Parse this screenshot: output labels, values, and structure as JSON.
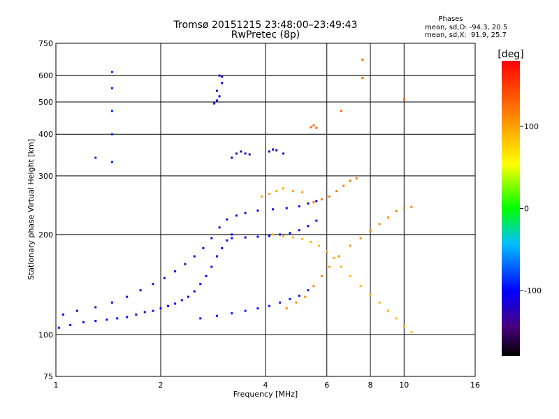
{
  "chart_data": {
    "type": "scatter",
    "title": "Tromsø 20151215 23:48:00–23:49:43",
    "subtitle": "RwPretec (8p)",
    "xlabel": "Frequency [MHz]",
    "ylabel": "Stationary phase Virtual Height [km]",
    "xscale": "log",
    "yscale": "log",
    "xlim": [
      1,
      16
    ],
    "ylim": [
      75,
      750
    ],
    "x_ticks": [
      1,
      2,
      4,
      6,
      8,
      10,
      16
    ],
    "y_ticks": [
      75,
      100,
      200,
      300,
      400,
      500,
      600,
      750
    ],
    "grid": true,
    "stats": {
      "heading": "Phases",
      "line_o": "mean, sd,O: -94.3, 20.5",
      "line_x": "mean, sd,X:  91.9, 25.7"
    },
    "colorbar": {
      "label": "[deg]",
      "min": -180,
      "max": 180,
      "ticks": [
        100,
        0,
        -100
      ]
    },
    "traces": [
      {
        "phase": -100,
        "points": [
          [
            1.02,
            105
          ],
          [
            1.1,
            107
          ],
          [
            1.2,
            109
          ],
          [
            1.3,
            110
          ],
          [
            1.4,
            111
          ],
          [
            1.5,
            112
          ],
          [
            1.6,
            113
          ],
          [
            1.7,
            115
          ],
          [
            1.8,
            117
          ],
          [
            1.9,
            118
          ],
          [
            2.0,
            120
          ],
          [
            2.1,
            122
          ],
          [
            2.2,
            124
          ],
          [
            2.3,
            127
          ],
          [
            2.4,
            130
          ],
          [
            2.5,
            135
          ],
          [
            2.6,
            142
          ],
          [
            2.7,
            150
          ],
          [
            2.8,
            160
          ],
          [
            2.9,
            172
          ],
          [
            3.0,
            182
          ],
          [
            3.1,
            192
          ],
          [
            3.2,
            200
          ]
        ]
      },
      {
        "phase": -110,
        "points": [
          [
            1.05,
            115
          ],
          [
            1.15,
            118
          ],
          [
            1.3,
            121
          ],
          [
            1.45,
            125
          ],
          [
            1.6,
            130
          ],
          [
            1.75,
            136
          ],
          [
            1.9,
            142
          ],
          [
            2.05,
            148
          ],
          [
            2.2,
            155
          ],
          [
            2.35,
            163
          ],
          [
            2.5,
            172
          ],
          [
            2.65,
            182
          ],
          [
            2.8,
            195
          ],
          [
            2.95,
            210
          ],
          [
            3.1,
            222
          ],
          [
            3.3,
            228
          ],
          [
            3.5,
            232
          ],
          [
            3.8,
            236
          ],
          [
            4.2,
            238
          ],
          [
            4.6,
            240
          ],
          [
            5.0,
            243
          ],
          [
            5.3,
            248
          ],
          [
            5.6,
            252
          ]
        ]
      },
      {
        "phase": -95,
        "points": [
          [
            2.6,
            112
          ],
          [
            2.9,
            114
          ],
          [
            3.2,
            116
          ],
          [
            3.5,
            118
          ],
          [
            3.8,
            120
          ],
          [
            4.1,
            122
          ],
          [
            4.4,
            125
          ],
          [
            4.7,
            128
          ],
          [
            5.0,
            131
          ],
          [
            5.3,
            136
          ]
        ]
      },
      {
        "phase": -100,
        "points": [
          [
            3.2,
            195
          ],
          [
            3.5,
            196
          ],
          [
            3.8,
            197
          ],
          [
            4.1,
            198
          ],
          [
            4.4,
            200
          ],
          [
            4.7,
            202
          ],
          [
            5.0,
            206
          ],
          [
            5.3,
            212
          ],
          [
            5.6,
            220
          ]
        ]
      },
      {
        "phase": -120,
        "points": [
          [
            3.2,
            340
          ],
          [
            3.3,
            350
          ],
          [
            3.4,
            355
          ],
          [
            3.5,
            350
          ],
          [
            3.6,
            348
          ],
          [
            4.1,
            355
          ],
          [
            4.2,
            360
          ],
          [
            4.3,
            358
          ],
          [
            4.5,
            350
          ]
        ]
      },
      {
        "phase": -110,
        "points": [
          [
            2.85,
            495
          ],
          [
            2.9,
            505
          ],
          [
            2.95,
            520
          ],
          [
            2.9,
            540
          ],
          [
            3.0,
            570
          ],
          [
            2.95,
            600
          ],
          [
            3.0,
            595
          ]
        ]
      },
      {
        "phase": 110,
        "points": [
          [
            4.6,
            120
          ],
          [
            4.9,
            125
          ],
          [
            5.2,
            130
          ],
          [
            5.5,
            140
          ],
          [
            5.8,
            150
          ],
          [
            6.1,
            160
          ],
          [
            6.5,
            172
          ],
          [
            7.0,
            185
          ],
          [
            7.5,
            195
          ],
          [
            8.0,
            205
          ],
          [
            8.5,
            215
          ],
          [
            9.0,
            225
          ],
          [
            9.5,
            235
          ],
          [
            10.0,
            240
          ],
          [
            10.5,
            242
          ]
        ]
      },
      {
        "phase": 90,
        "points": [
          [
            4.2,
            200
          ],
          [
            4.5,
            198
          ],
          [
            4.8,
            196
          ],
          [
            5.1,
            194
          ],
          [
            5.4,
            190
          ],
          [
            5.7,
            185
          ],
          [
            6.0,
            178
          ],
          [
            6.3,
            170
          ],
          [
            6.6,
            160
          ],
          [
            7.0,
            150
          ],
          [
            7.5,
            140
          ],
          [
            8.0,
            132
          ],
          [
            8.5,
            125
          ],
          [
            9.0,
            118
          ],
          [
            9.5,
            112
          ],
          [
            10.0,
            106
          ],
          [
            10.5,
            102
          ]
        ]
      },
      {
        "phase": 120,
        "points": [
          [
            5.5,
            250
          ],
          [
            5.8,
            255
          ],
          [
            6.1,
            260
          ],
          [
            6.4,
            270
          ],
          [
            6.7,
            280
          ],
          [
            7.0,
            290
          ],
          [
            7.3,
            295
          ]
        ]
      },
      {
        "phase": 95,
        "points": [
          [
            3.9,
            260
          ],
          [
            4.1,
            265
          ],
          [
            4.3,
            270
          ],
          [
            4.5,
            275
          ],
          [
            4.8,
            270
          ],
          [
            5.1,
            268
          ]
        ]
      },
      {
        "phase": -90,
        "points": [
          [
            1.45,
            330
          ],
          [
            1.45,
            400
          ],
          [
            1.45,
            470
          ],
          [
            1.45,
            550
          ],
          [
            1.45,
            615
          ],
          [
            1.3,
            340
          ]
        ]
      },
      {
        "phase": 130,
        "points": [
          [
            5.4,
            420
          ],
          [
            5.5,
            425
          ],
          [
            5.6,
            418
          ],
          [
            10.0,
            510
          ],
          [
            7.6,
            670
          ],
          [
            7.6,
            590
          ],
          [
            6.6,
            470
          ]
        ]
      }
    ]
  }
}
